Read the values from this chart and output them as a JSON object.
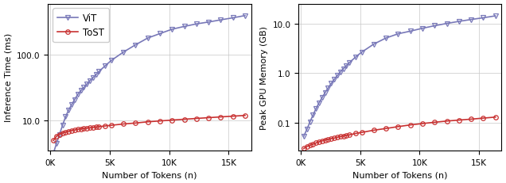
{
  "tokens": [
    256,
    512,
    768,
    1024,
    1280,
    1536,
    1792,
    2048,
    2304,
    2560,
    2816,
    3072,
    3328,
    3584,
    3840,
    4096,
    4608,
    5120,
    6144,
    7168,
    8192,
    9216,
    10240,
    11264,
    12288,
    13312,
    14336,
    15360,
    16384
  ],
  "vit_time": [
    3.2,
    4.5,
    6.2,
    8.5,
    11.5,
    14.5,
    17.5,
    21.0,
    25.0,
    28.5,
    32.0,
    36.0,
    40.5,
    45.0,
    50.0,
    56.0,
    68.0,
    82.0,
    110.0,
    142.0,
    180.0,
    210.0,
    245.0,
    270.0,
    295.0,
    315.0,
    340.0,
    365.0,
    395.0
  ],
  "tost_time": [
    5.0,
    5.8,
    6.2,
    6.5,
    6.7,
    6.9,
    7.1,
    7.2,
    7.4,
    7.5,
    7.6,
    7.7,
    7.8,
    7.9,
    8.0,
    8.1,
    8.3,
    8.5,
    8.9,
    9.2,
    9.6,
    9.9,
    10.2,
    10.5,
    10.8,
    11.1,
    11.4,
    11.7,
    12.0
  ],
  "vit_mem": [
    0.055,
    0.075,
    0.105,
    0.145,
    0.195,
    0.255,
    0.325,
    0.41,
    0.51,
    0.625,
    0.755,
    0.9,
    1.06,
    1.235,
    1.43,
    1.64,
    2.11,
    2.65,
    3.85,
    5.1,
    6.2,
    7.0,
    8.0,
    9.0,
    10.0,
    11.0,
    12.0,
    13.0,
    14.2
  ],
  "tost_mem": [
    0.031,
    0.034,
    0.036,
    0.038,
    0.04,
    0.042,
    0.044,
    0.046,
    0.047,
    0.049,
    0.05,
    0.052,
    0.054,
    0.055,
    0.057,
    0.058,
    0.062,
    0.065,
    0.072,
    0.078,
    0.085,
    0.092,
    0.098,
    0.104,
    0.11,
    0.115,
    0.12,
    0.126,
    0.132
  ],
  "vit_color": "#7878b8",
  "tost_color": "#c83232",
  "xlabel": "Number of Tokens (n)",
  "ylabel_left": "Inference Time (ms)",
  "ylabel_right": "Peak GPU Memory (GB)",
  "legend_labels": [
    "ViT",
    "ToST"
  ],
  "xtick_values": [
    0,
    5000,
    10000,
    15000
  ],
  "xtick_labels": [
    "0K",
    "5K",
    "10K",
    "15K"
  ],
  "time_yticks": [
    10.0,
    100.0
  ],
  "time_ylim": [
    3.5,
    600
  ],
  "mem_yticks": [
    0.1,
    1.0,
    10.0
  ],
  "mem_ylim": [
    0.028,
    25
  ]
}
